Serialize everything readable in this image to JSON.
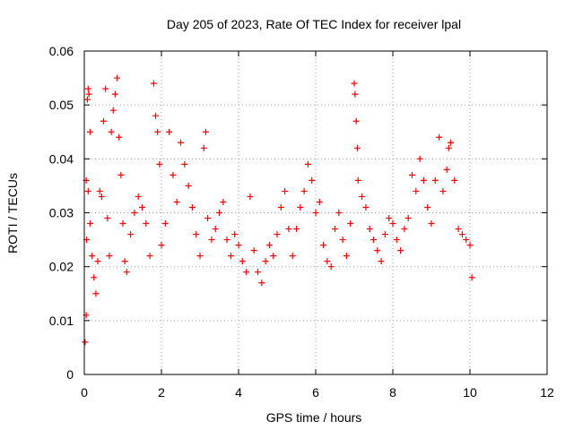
{
  "chart_data": {
    "type": "scatter",
    "title": "Day 205 of 2023, Rate Of TEC Index for receiver lpal",
    "xlabel": "GPS time / hours",
    "ylabel": "ROTI / TECUs",
    "xlim": [
      0,
      12
    ],
    "ylim": [
      0,
      0.06
    ],
    "x_ticks": [
      "0",
      "2",
      "4",
      "6",
      "8",
      "10",
      "12"
    ],
    "y_ticks": [
      "0",
      "0.01",
      "0.02",
      "0.03",
      "0.04",
      "0.05",
      "0.06"
    ],
    "x_tick_values": [
      0,
      2,
      4,
      6,
      8,
      10,
      12
    ],
    "y_tick_values": [
      0,
      0.01,
      0.02,
      0.03,
      0.04,
      0.05,
      0.06
    ],
    "grid": true,
    "marker": "+",
    "marker_color": "#ff0000",
    "legend": "none",
    "series": [
      {
        "points": [
          [
            0.02,
            0.006
          ],
          [
            0.05,
            0.011
          ],
          [
            0.08,
            0.051
          ],
          [
            0.1,
            0.053
          ],
          [
            0.12,
            0.052
          ],
          [
            0.15,
            0.045
          ],
          [
            0.05,
            0.036
          ],
          [
            0.1,
            0.034
          ],
          [
            0.06,
            0.025
          ],
          [
            0.15,
            0.028
          ],
          [
            0.2,
            0.022
          ],
          [
            0.25,
            0.018
          ],
          [
            0.3,
            0.015
          ],
          [
            0.35,
            0.021
          ],
          [
            0.4,
            0.034
          ],
          [
            0.45,
            0.033
          ],
          [
            0.5,
            0.047
          ],
          [
            0.55,
            0.053
          ],
          [
            0.6,
            0.029
          ],
          [
            0.65,
            0.022
          ],
          [
            0.7,
            0.045
          ],
          [
            0.75,
            0.049
          ],
          [
            0.8,
            0.052
          ],
          [
            0.85,
            0.055
          ],
          [
            0.9,
            0.044
          ],
          [
            0.95,
            0.037
          ],
          [
            1.0,
            0.028
          ],
          [
            1.05,
            0.021
          ],
          [
            1.1,
            0.019
          ],
          [
            1.2,
            0.026
          ],
          [
            1.3,
            0.03
          ],
          [
            1.4,
            0.033
          ],
          [
            1.5,
            0.031
          ],
          [
            1.6,
            0.028
          ],
          [
            1.7,
            0.022
          ],
          [
            1.8,
            0.054
          ],
          [
            1.85,
            0.048
          ],
          [
            1.9,
            0.045
          ],
          [
            1.95,
            0.039
          ],
          [
            2.0,
            0.024
          ],
          [
            2.1,
            0.028
          ],
          [
            2.2,
            0.045
          ],
          [
            2.3,
            0.037
          ],
          [
            2.4,
            0.032
          ],
          [
            2.5,
            0.043
          ],
          [
            2.6,
            0.039
          ],
          [
            2.7,
            0.035
          ],
          [
            2.8,
            0.031
          ],
          [
            2.9,
            0.026
          ],
          [
            3.0,
            0.022
          ],
          [
            3.1,
            0.042
          ],
          [
            3.15,
            0.045
          ],
          [
            3.2,
            0.029
          ],
          [
            3.3,
            0.025
          ],
          [
            3.4,
            0.027
          ],
          [
            3.5,
            0.03
          ],
          [
            3.6,
            0.032
          ],
          [
            3.7,
            0.025
          ],
          [
            3.8,
            0.022
          ],
          [
            3.9,
            0.026
          ],
          [
            4.0,
            0.024
          ],
          [
            4.1,
            0.021
          ],
          [
            4.2,
            0.019
          ],
          [
            4.3,
            0.033
          ],
          [
            4.4,
            0.023
          ],
          [
            4.5,
            0.019
          ],
          [
            4.6,
            0.017
          ],
          [
            4.7,
            0.021
          ],
          [
            4.8,
            0.024
          ],
          [
            4.9,
            0.022
          ],
          [
            5.0,
            0.026
          ],
          [
            5.1,
            0.031
          ],
          [
            5.2,
            0.034
          ],
          [
            5.3,
            0.027
          ],
          [
            5.4,
            0.022
          ],
          [
            5.5,
            0.027
          ],
          [
            5.6,
            0.031
          ],
          [
            5.7,
            0.034
          ],
          [
            5.8,
            0.039
          ],
          [
            5.9,
            0.036
          ],
          [
            6.0,
            0.03
          ],
          [
            6.1,
            0.032
          ],
          [
            6.2,
            0.024
          ],
          [
            6.3,
            0.021
          ],
          [
            6.4,
            0.02
          ],
          [
            6.5,
            0.027
          ],
          [
            6.6,
            0.03
          ],
          [
            6.7,
            0.025
          ],
          [
            6.8,
            0.022
          ],
          [
            6.9,
            0.028
          ],
          [
            7.0,
            0.054
          ],
          [
            7.02,
            0.052
          ],
          [
            7.05,
            0.047
          ],
          [
            7.08,
            0.042
          ],
          [
            7.1,
            0.036
          ],
          [
            7.2,
            0.033
          ],
          [
            7.3,
            0.031
          ],
          [
            7.4,
            0.027
          ],
          [
            7.5,
            0.025
          ],
          [
            7.6,
            0.023
          ],
          [
            7.7,
            0.021
          ],
          [
            7.8,
            0.026
          ],
          [
            7.9,
            0.029
          ],
          [
            8.0,
            0.028
          ],
          [
            8.1,
            0.025
          ],
          [
            8.2,
            0.023
          ],
          [
            8.3,
            0.027
          ],
          [
            8.4,
            0.029
          ],
          [
            8.5,
            0.037
          ],
          [
            8.6,
            0.034
          ],
          [
            8.7,
            0.04
          ],
          [
            8.8,
            0.036
          ],
          [
            8.9,
            0.031
          ],
          [
            9.0,
            0.028
          ],
          [
            9.1,
            0.036
          ],
          [
            9.2,
            0.044
          ],
          [
            9.3,
            0.034
          ],
          [
            9.4,
            0.038
          ],
          [
            9.45,
            0.042
          ],
          [
            9.5,
            0.043
          ],
          [
            9.6,
            0.036
          ],
          [
            9.7,
            0.027
          ],
          [
            9.8,
            0.026
          ],
          [
            9.9,
            0.025
          ],
          [
            10.0,
            0.024
          ],
          [
            10.05,
            0.018
          ]
        ]
      }
    ]
  }
}
